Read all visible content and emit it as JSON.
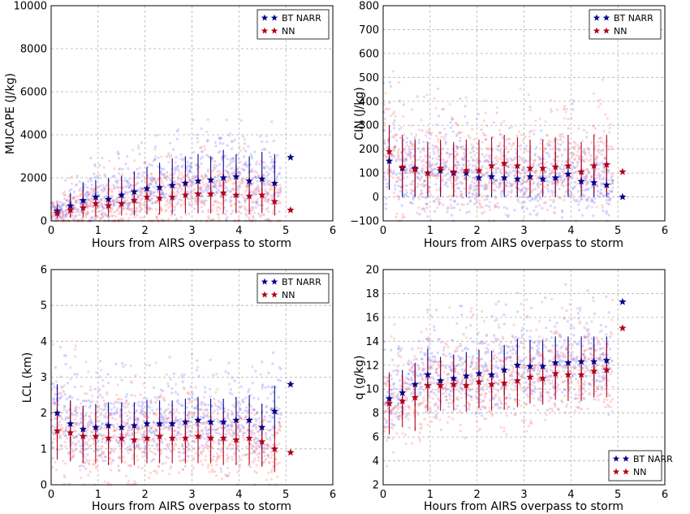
{
  "colors": {
    "bt_narr": "#00008b",
    "nn": "#b0001a",
    "bt_scatter": "#6a6aff",
    "nn_scatter": "#ff6f6f",
    "grid": "#b0b0b0"
  },
  "chart_data": [
    {
      "type": "scatter",
      "xlabel": "Hours from AIRS overpass to storm",
      "ylabel": "MUCAPE (J/kg)",
      "xlim": [
        0,
        6
      ],
      "ylim": [
        0,
        10000
      ],
      "xticks": [
        "0",
        "1",
        "2",
        "3",
        "4",
        "5",
        "6"
      ],
      "yticks": [
        "0",
        "2000",
        "4000",
        "6000",
        "8000",
        "10000"
      ],
      "grid": true,
      "legend": {
        "position": "upper-right",
        "entries": [
          "BT NARR",
          "NN"
        ]
      },
      "series": [
        {
          "name": "BT NARR",
          "x": [
            0.13,
            0.41,
            0.68,
            0.95,
            1.22,
            1.5,
            1.77,
            2.04,
            2.31,
            2.58,
            2.86,
            3.13,
            3.4,
            3.67,
            3.94,
            4.22,
            4.49,
            4.76,
            5.1
          ],
          "y": [
            450,
            700,
            950,
            1100,
            1000,
            1200,
            1350,
            1500,
            1550,
            1650,
            1750,
            1850,
            1900,
            2000,
            2050,
            1850,
            1950,
            1750,
            2950
          ],
          "err_low": [
            200,
            450,
            500,
            600,
            650,
            650,
            750,
            850,
            900,
            950,
            1000,
            1000,
            1000,
            1050,
            1050,
            1000,
            1050,
            1000,
            null
          ],
          "err_high": [
            700,
            1300,
            1800,
            1900,
            2000,
            2100,
            2300,
            2500,
            2700,
            2900,
            3000,
            3100,
            3000,
            3300,
            3100,
            3000,
            3200,
            3100,
            null
          ]
        },
        {
          "name": "NN",
          "x": [
            0.13,
            0.41,
            0.68,
            0.95,
            1.22,
            1.5,
            1.77,
            2.04,
            2.31,
            2.58,
            2.86,
            3.13,
            3.4,
            3.67,
            3.94,
            4.22,
            4.49,
            4.76,
            5.1
          ],
          "y": [
            350,
            500,
            600,
            800,
            700,
            800,
            950,
            1100,
            1050,
            1100,
            1200,
            1250,
            1250,
            1300,
            1200,
            1150,
            1200,
            900,
            500
          ],
          "err_low": [
            100,
            150,
            150,
            200,
            200,
            250,
            250,
            300,
            300,
            300,
            350,
            350,
            350,
            350,
            350,
            300,
            350,
            250,
            null
          ],
          "err_high": [
            800,
            1200,
            1400,
            1600,
            1800,
            1900,
            2000,
            2100,
            2200,
            2300,
            2300,
            2300,
            2300,
            2300,
            2300,
            2100,
            2200,
            1900,
            null
          ]
        }
      ]
    },
    {
      "type": "scatter",
      "xlabel": "Hours from AIRS overpass to storm",
      "ylabel": "CIN (J/kg)",
      "xlim": [
        0,
        6
      ],
      "ylim": [
        -100,
        800
      ],
      "xticks": [
        "0",
        "1",
        "2",
        "3",
        "4",
        "5",
        "6"
      ],
      "yticks": [
        "−100",
        "0",
        "100",
        "200",
        "300",
        "400",
        "500",
        "600",
        "700",
        "800"
      ],
      "grid": true,
      "legend": {
        "position": "upper-right",
        "entries": [
          "BT NARR",
          "NN"
        ]
      },
      "series": [
        {
          "name": "BT NARR",
          "x": [
            0.13,
            0.41,
            0.68,
            0.95,
            1.22,
            1.5,
            1.77,
            2.04,
            2.31,
            2.58,
            2.86,
            3.13,
            3.4,
            3.67,
            3.94,
            4.22,
            4.49,
            4.76,
            5.1
          ],
          "y": [
            150,
            120,
            120,
            100,
            110,
            100,
            100,
            80,
            85,
            80,
            75,
            85,
            75,
            80,
            95,
            65,
            60,
            50,
            0
          ],
          "err_low": [
            30,
            0,
            0,
            0,
            0,
            0,
            0,
            0,
            0,
            0,
            0,
            0,
            0,
            0,
            0,
            0,
            0,
            0,
            null
          ],
          "err_high": [
            270,
            240,
            230,
            220,
            230,
            220,
            220,
            200,
            210,
            200,
            190,
            200,
            180,
            190,
            210,
            160,
            150,
            130,
            null
          ]
        },
        {
          "name": "NN",
          "x": [
            0.13,
            0.41,
            0.68,
            0.95,
            1.22,
            1.5,
            1.77,
            2.04,
            2.31,
            2.58,
            2.86,
            3.13,
            3.4,
            3.67,
            3.94,
            4.22,
            4.49,
            4.76,
            5.1
          ],
          "y": [
            190,
            125,
            115,
            100,
            120,
            105,
            110,
            110,
            130,
            140,
            130,
            120,
            120,
            125,
            130,
            105,
            130,
            135,
            105
          ],
          "err_low": [
            70,
            20,
            10,
            5,
            10,
            5,
            10,
            10,
            15,
            20,
            15,
            10,
            10,
            15,
            15,
            10,
            15,
            20,
            null
          ],
          "err_high": [
            300,
            260,
            240,
            230,
            240,
            230,
            240,
            240,
            250,
            260,
            250,
            240,
            240,
            250,
            260,
            230,
            260,
            260,
            null
          ]
        }
      ]
    },
    {
      "type": "scatter",
      "xlabel": "Hours from AIRS overpass to storm",
      "ylabel": "LCL (km)",
      "xlim": [
        0,
        6
      ],
      "ylim": [
        0,
        6
      ],
      "xticks": [
        "0",
        "1",
        "2",
        "3",
        "4",
        "5",
        "6"
      ],
      "yticks": [
        "0",
        "1",
        "2",
        "3",
        "4",
        "5",
        "6"
      ],
      "grid": true,
      "legend": {
        "position": "upper-right",
        "entries": [
          "BT NARR",
          "NN"
        ]
      },
      "series": [
        {
          "name": "BT NARR",
          "x": [
            0.13,
            0.41,
            0.68,
            0.95,
            1.22,
            1.5,
            1.77,
            2.04,
            2.31,
            2.58,
            2.86,
            3.13,
            3.4,
            3.67,
            3.94,
            4.22,
            4.49,
            4.76,
            5.1
          ],
          "y": [
            2.0,
            1.7,
            1.55,
            1.6,
            1.65,
            1.6,
            1.65,
            1.7,
            1.7,
            1.7,
            1.75,
            1.8,
            1.75,
            1.75,
            1.8,
            1.8,
            1.6,
            2.05,
            2.8
          ],
          "err_low": [
            1.2,
            1.05,
            0.95,
            1.0,
            1.0,
            1.0,
            1.05,
            1.1,
            1.1,
            1.1,
            1.1,
            1.15,
            1.1,
            1.1,
            1.15,
            1.1,
            1.0,
            1.3,
            null
          ],
          "err_high": [
            2.8,
            2.35,
            2.2,
            2.25,
            2.3,
            2.3,
            2.3,
            2.35,
            2.35,
            2.35,
            2.4,
            2.45,
            2.4,
            2.4,
            2.45,
            2.5,
            2.25,
            2.75,
            null
          ]
        },
        {
          "name": "NN",
          "x": [
            0.13,
            0.41,
            0.68,
            0.95,
            1.22,
            1.5,
            1.77,
            2.04,
            2.31,
            2.58,
            2.86,
            3.13,
            3.4,
            3.67,
            3.94,
            4.22,
            4.49,
            4.76,
            5.1
          ],
          "y": [
            1.5,
            1.45,
            1.35,
            1.35,
            1.3,
            1.3,
            1.25,
            1.3,
            1.35,
            1.3,
            1.3,
            1.35,
            1.3,
            1.3,
            1.25,
            1.3,
            1.2,
            1.0,
            0.9
          ],
          "err_low": [
            0.7,
            0.65,
            0.6,
            0.6,
            0.55,
            0.6,
            0.55,
            0.6,
            0.6,
            0.6,
            0.6,
            0.6,
            0.6,
            0.55,
            0.55,
            0.55,
            0.5,
            0.35,
            null
          ],
          "err_high": [
            2.35,
            2.3,
            2.15,
            2.1,
            2.0,
            2.0,
            1.95,
            2.0,
            2.05,
            2.0,
            2.0,
            2.05,
            2.0,
            2.0,
            1.95,
            2.0,
            1.9,
            1.6,
            null
          ]
        }
      ]
    },
    {
      "type": "scatter",
      "xlabel": "Hours from AIRS overpass to storm",
      "ylabel": "q (g/kg)",
      "xlim": [
        0,
        6
      ],
      "ylim": [
        2,
        20
      ],
      "xticks": [
        "0",
        "1",
        "2",
        "3",
        "4",
        "5",
        "6"
      ],
      "yticks": [
        "2",
        "4",
        "6",
        "8",
        "10",
        "12",
        "14",
        "16",
        "18",
        "20"
      ],
      "grid": true,
      "legend": {
        "position": "lower-right",
        "entries": [
          "BT NARR",
          "NN"
        ]
      },
      "series": [
        {
          "name": "BT NARR",
          "x": [
            0.13,
            0.41,
            0.68,
            0.95,
            1.22,
            1.5,
            1.77,
            2.04,
            2.31,
            2.58,
            2.86,
            3.13,
            3.4,
            3.67,
            3.94,
            4.22,
            4.49,
            4.76,
            5.1
          ],
          "y": [
            9.2,
            9.7,
            10.4,
            11.2,
            10.7,
            10.9,
            11.1,
            11.3,
            11.2,
            11.6,
            12.0,
            11.9,
            11.9,
            12.2,
            12.2,
            12.3,
            12.3,
            12.4,
            17.3
          ],
          "err_low": [
            7.2,
            7.8,
            8.6,
            9.0,
            8.7,
            8.9,
            9.1,
            9.3,
            9.2,
            9.5,
            9.8,
            9.7,
            9.7,
            10.0,
            10.0,
            10.2,
            10.2,
            10.4,
            null
          ],
          "err_high": [
            11.2,
            11.6,
            12.2,
            13.4,
            12.7,
            12.9,
            13.1,
            13.3,
            13.2,
            13.7,
            14.2,
            14.1,
            14.1,
            14.4,
            14.4,
            14.4,
            14.4,
            14.4,
            null
          ]
        },
        {
          "name": "NN",
          "x": [
            0.13,
            0.41,
            0.68,
            0.95,
            1.22,
            1.5,
            1.77,
            2.04,
            2.31,
            2.58,
            2.86,
            3.13,
            3.4,
            3.67,
            3.94,
            4.22,
            4.49,
            4.76,
            5.1
          ],
          "y": [
            8.8,
            9.0,
            9.3,
            10.3,
            10.3,
            10.4,
            10.3,
            10.6,
            10.4,
            10.5,
            10.7,
            11.0,
            10.9,
            11.3,
            11.2,
            11.2,
            11.5,
            11.6,
            15.1
          ],
          "err_low": [
            6.2,
            6.8,
            6.5,
            8.2,
            8.2,
            8.2,
            8.1,
            8.4,
            8.2,
            8.3,
            8.5,
            8.8,
            8.7,
            9.1,
            9.0,
            9.0,
            9.3,
            9.3,
            null
          ],
          "err_high": [
            11.4,
            11.2,
            12.1,
            12.4,
            12.4,
            12.6,
            12.5,
            12.8,
            12.6,
            12.7,
            12.9,
            13.2,
            13.1,
            13.5,
            13.4,
            13.4,
            13.7,
            13.9,
            null
          ]
        }
      ]
    }
  ]
}
